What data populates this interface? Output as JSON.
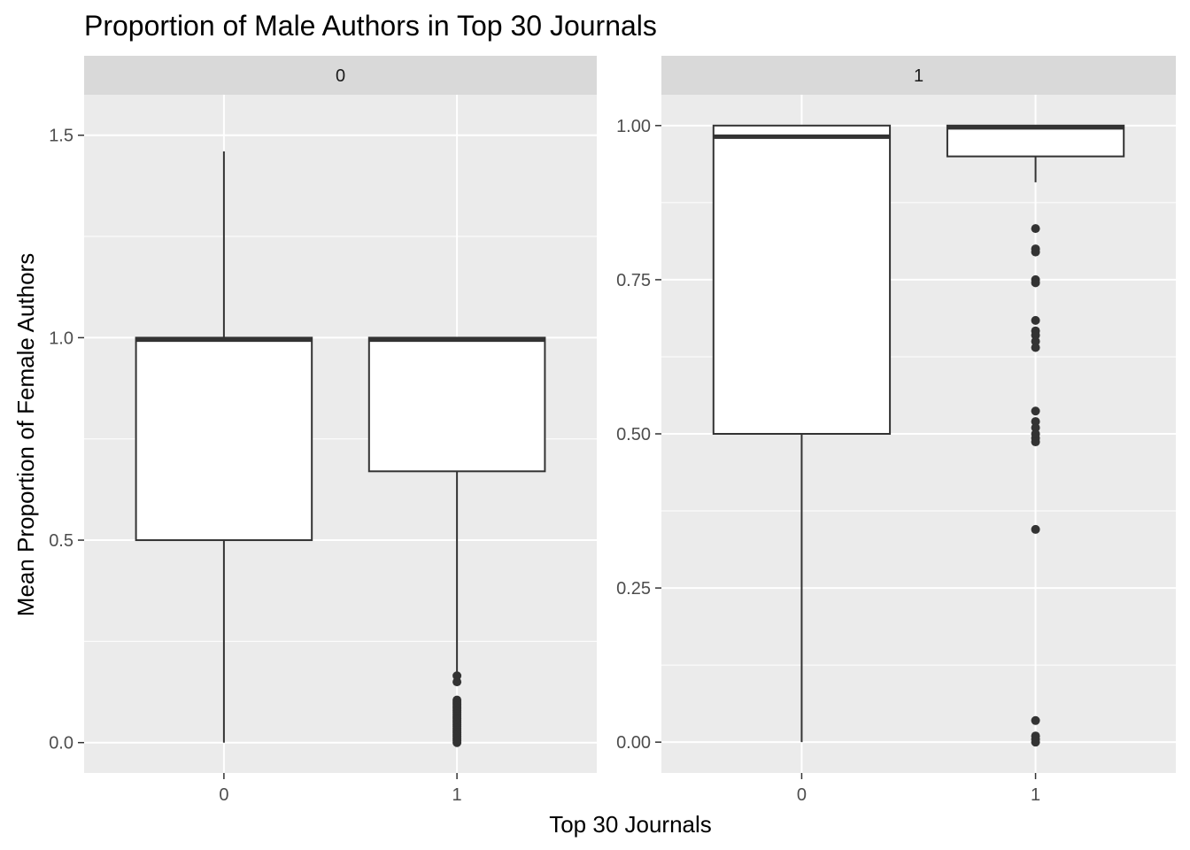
{
  "chart_data": {
    "type": "boxplot",
    "title": "Proportion of Male Authors in Top 30 Journals",
    "xlabel": "Top 30 Journals",
    "ylabel": "Mean Proportion of Female Authors",
    "panels": [
      {
        "strip": "0",
        "ylim": [
          -0.075,
          1.6
        ],
        "yticks": [
          0.0,
          0.5,
          1.0,
          1.5
        ],
        "ytick_labels": [
          "0.0",
          "0.5",
          "1.0",
          "1.5"
        ],
        "categories": [
          "0",
          "1"
        ],
        "boxes": [
          {
            "category": "0",
            "whisker_low": 0.0,
            "q1": 0.5,
            "median": 0.995,
            "q3": 1.0,
            "whisker_high": 1.46,
            "outliers": []
          },
          {
            "category": "1",
            "whisker_low": 0.17,
            "q1": 0.67,
            "median": 0.995,
            "q3": 1.0,
            "whisker_high": 1.0,
            "outliers": [
              0.165,
              0.15,
              0.105,
              0.1,
              0.095,
              0.09,
              0.085,
              0.08,
              0.075,
              0.07,
              0.065,
              0.06,
              0.055,
              0.05,
              0.045,
              0.04,
              0.035,
              0.03,
              0.025,
              0.02,
              0.015,
              0.01,
              0.005,
              0.0
            ]
          }
        ]
      },
      {
        "strip": "1",
        "ylim": [
          -0.05,
          1.05
        ],
        "yticks": [
          0.0,
          0.25,
          0.5,
          0.75,
          1.0
        ],
        "ytick_labels": [
          "0.00",
          "0.25",
          "0.50",
          "0.75",
          "1.00"
        ],
        "categories": [
          "0",
          "1"
        ],
        "boxes": [
          {
            "category": "0",
            "whisker_low": 0.0,
            "q1": 0.5,
            "median": 0.982,
            "q3": 1.0,
            "whisker_high": 1.0,
            "outliers": []
          },
          {
            "category": "1",
            "whisker_low": 0.908,
            "q1": 0.95,
            "median": 0.997,
            "q3": 1.0,
            "whisker_high": 1.0,
            "outliers": [
              0.833,
              0.8,
              0.795,
              0.75,
              0.745,
              0.684,
              0.667,
              0.66,
              0.65,
              0.64,
              0.537,
              0.52,
              0.51,
              0.5,
              0.493,
              0.487,
              0.345,
              0.035,
              0.01,
              0.005,
              0.0
            ]
          }
        ]
      }
    ],
    "colors": {
      "panel_bg": "#ebebeb",
      "strip_bg": "#d9d9d9",
      "grid": "#ffffff",
      "box_fill": "#ffffff",
      "box_line": "#333333",
      "tick_text": "#4d4d4d"
    }
  }
}
